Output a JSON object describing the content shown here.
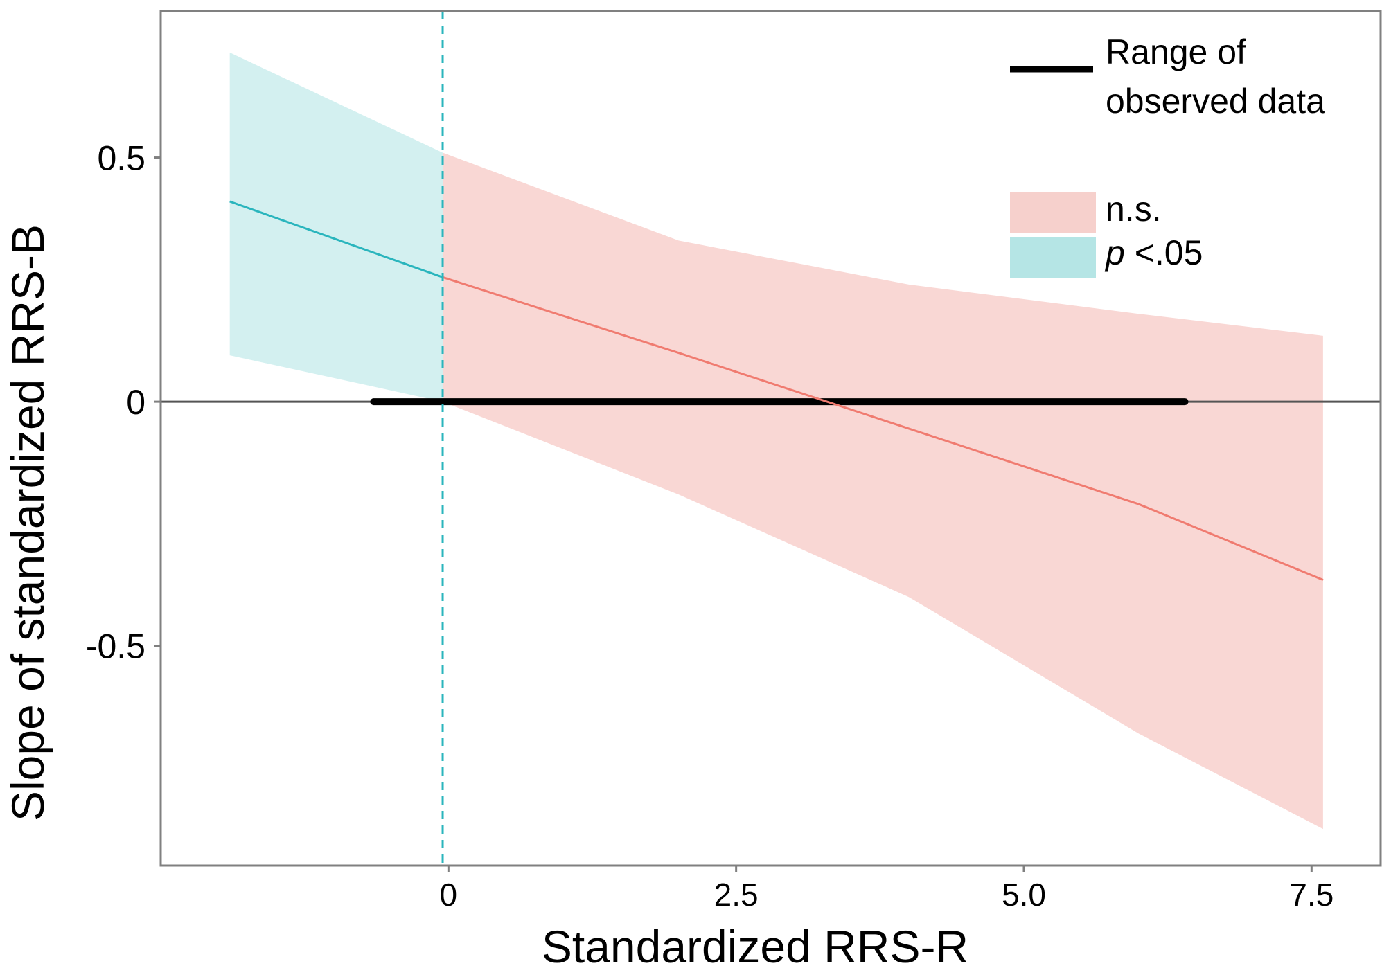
{
  "chart_data": {
    "type": "line",
    "title": "",
    "xlabel": "Standardized RRS-R",
    "ylabel": "Slope of standardized RRS-B",
    "xlim": [
      -2.5,
      8.1
    ],
    "ylim": [
      -0.95,
      0.8
    ],
    "x_ticks": [
      0,
      2.5,
      5.0,
      7.5
    ],
    "x_tick_labels": [
      "0",
      "2.5",
      "5.0",
      "7.5"
    ],
    "y_ticks": [
      0.5,
      0,
      -0.5
    ],
    "y_tick_labels": [
      "0.5",
      "0",
      "-0.5"
    ],
    "grid": false,
    "johnson_neyman_point": -0.05,
    "reference_line_y": 0,
    "observed_range": [
      -0.65,
      6.4
    ],
    "series": [
      {
        "name": "p <.05",
        "color": "#2ab5bd",
        "x": [
          -1.9,
          -0.05
        ],
        "y": [
          0.41,
          0.255
        ],
        "ci_lower": [
          0.095,
          0.0
        ],
        "ci_upper": [
          0.715,
          0.51
        ]
      },
      {
        "name": "n.s.",
        "color": "#f07b70",
        "x": [
          -0.05,
          2.0,
          4.0,
          6.0,
          7.6
        ],
        "y": [
          0.255,
          0.1,
          -0.055,
          -0.21,
          -0.365
        ],
        "ci_lower": [
          0.0,
          -0.19,
          -0.4,
          -0.68,
          -0.875
        ],
        "ci_upper": [
          0.51,
          0.33,
          0.24,
          0.18,
          0.135
        ]
      }
    ],
    "legend": {
      "position": "top-right",
      "range_label_line1": "Range of",
      "range_label_line2": "observed data",
      "ns_label": "n.s.",
      "sig_label_italic": "p",
      "sig_label_rest": " <.05"
    },
    "colors": {
      "ns_fill": "#f9d7d4",
      "sig_fill": "#d3f0f0",
      "ns_legend_fill": "#f6d0cc",
      "sig_legend_fill": "#b5e5e5",
      "axis_frame": "#808080",
      "zero_line": "#555555",
      "range_line": "#000000"
    }
  }
}
